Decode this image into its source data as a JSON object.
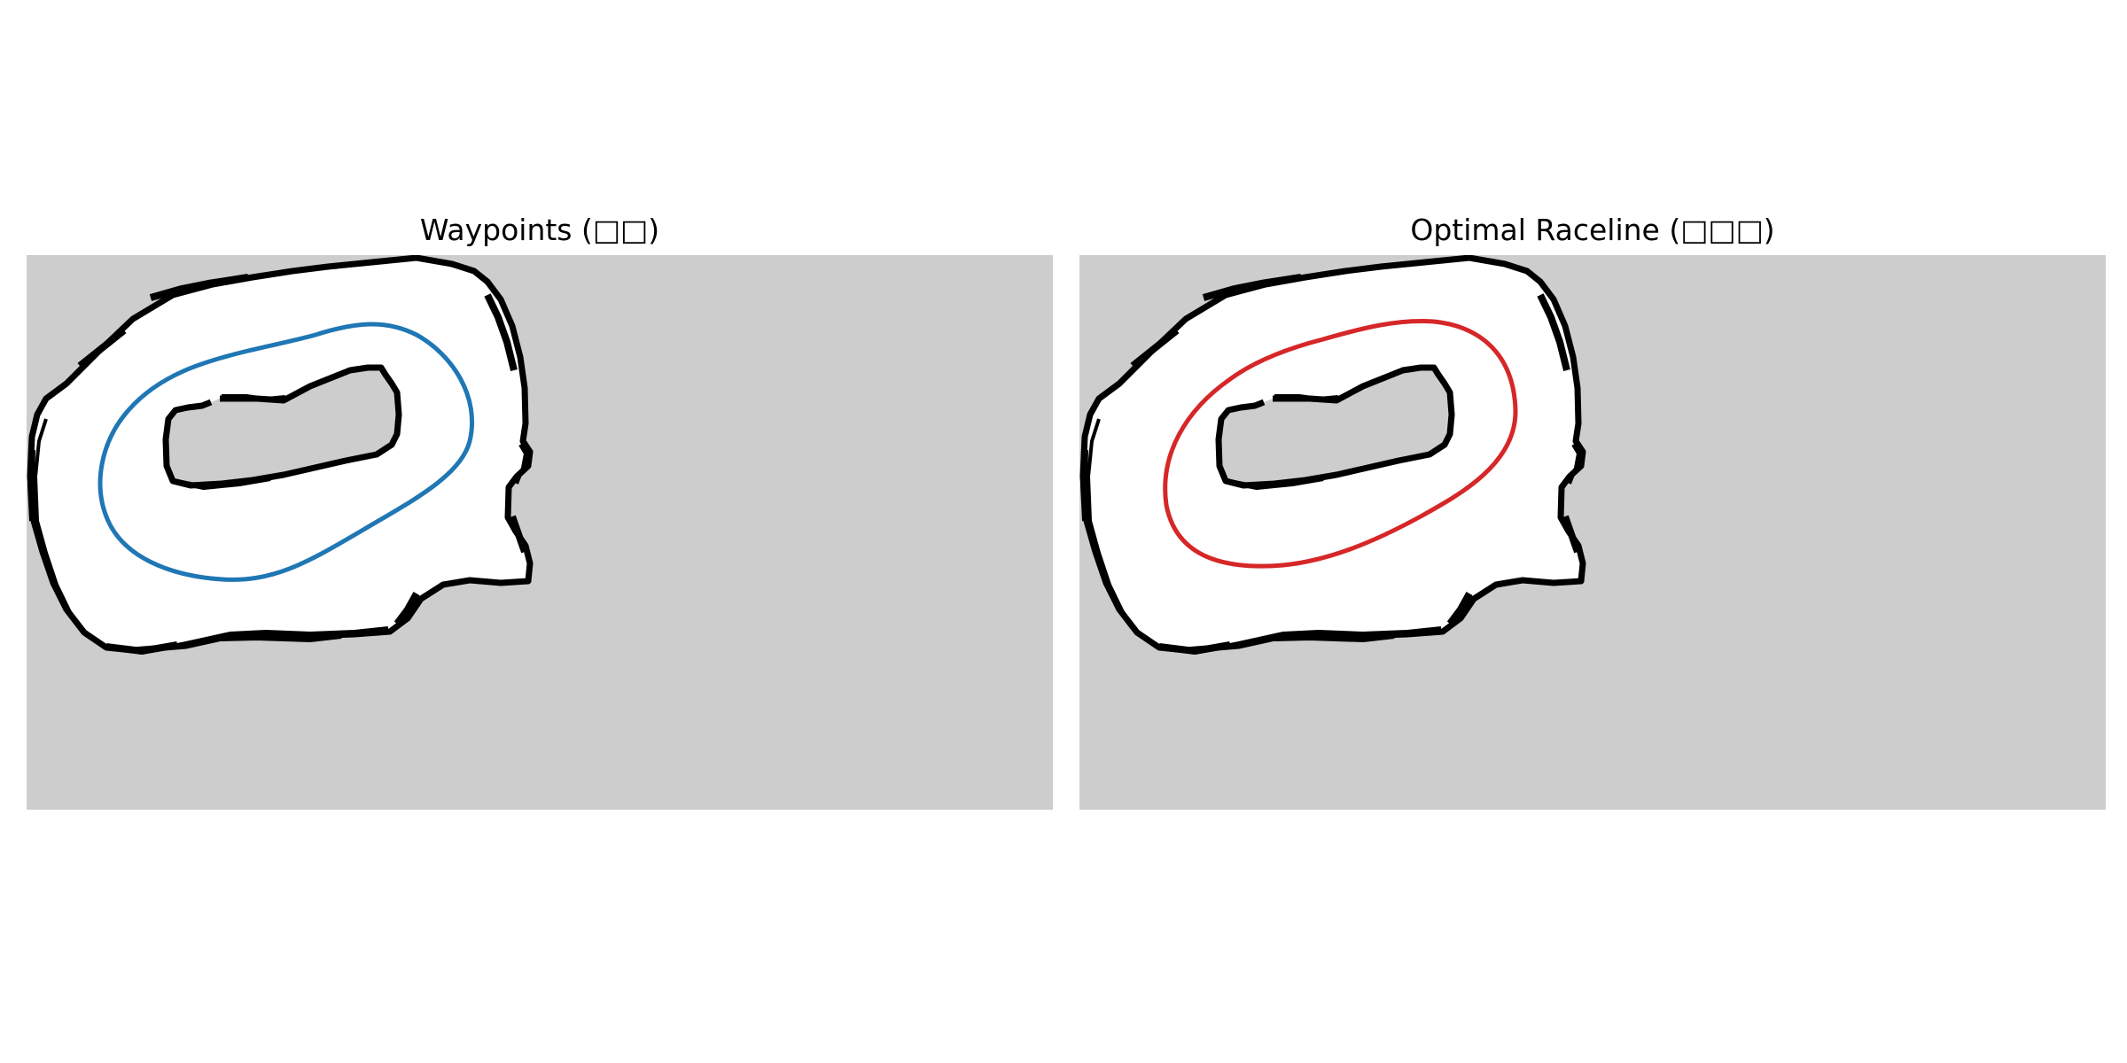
{
  "panels": [
    {
      "title": "Waypoints (□□)",
      "line_label": "waypoints",
      "line_color": "#1f77b4"
    },
    {
      "title": "Optimal Raceline (□□□)",
      "line_label": "raceline",
      "line_color": "#d62728"
    }
  ],
  "map": {
    "unknown_color": "#cdcdcd",
    "free_color": "#ffffff",
    "wall_color": "#000000"
  }
}
